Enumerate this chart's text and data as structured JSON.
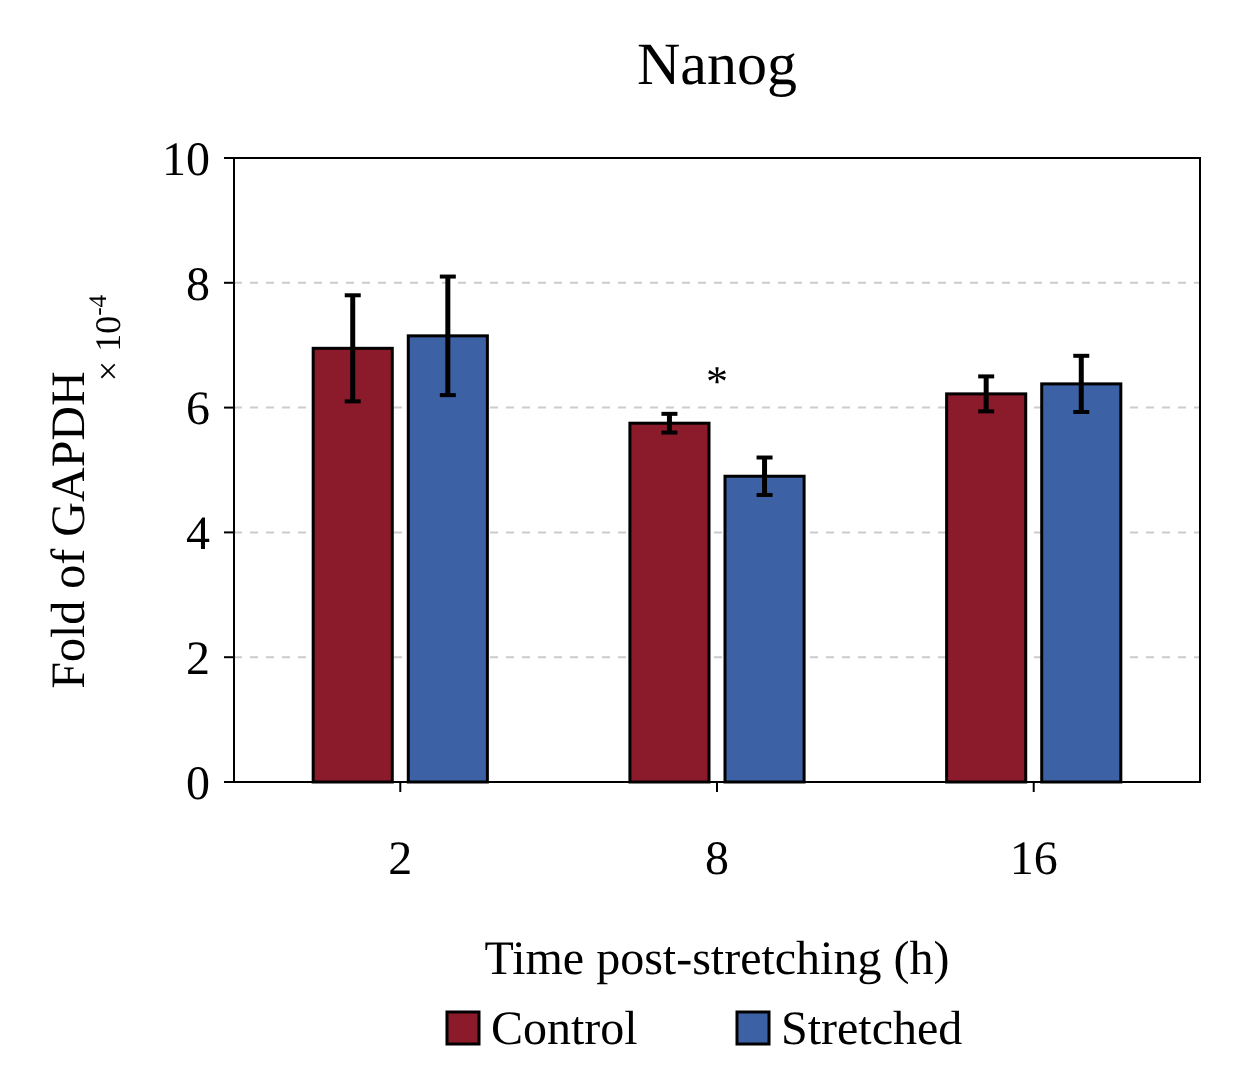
{
  "chart_data": {
    "type": "bar",
    "title": "Nanog",
    "xlabel": "Time post-stretching (h)",
    "ylabel": "Fold of GAPDH",
    "categories": [
      "2",
      "8",
      "16"
    ],
    "series": [
      {
        "name": "Control",
        "color": "#8b1a2b",
        "values": [
          6.95,
          5.75,
          6.22
        ],
        "errors": [
          0.85,
          0.15,
          0.28
        ]
      },
      {
        "name": "Stretched",
        "color": "#3c62a5",
        "values": [
          7.15,
          4.9,
          6.38
        ],
        "errors": [
          0.95,
          0.3,
          0.45
        ]
      }
    ],
    "ylim": [
      0,
      10
    ],
    "yticks": [
      0,
      2,
      4,
      6,
      8,
      10
    ],
    "grid": "y",
    "legend": "bottom",
    "annotations": [
      "× 10$^{-4}$",
      "*"
    ]
  }
}
